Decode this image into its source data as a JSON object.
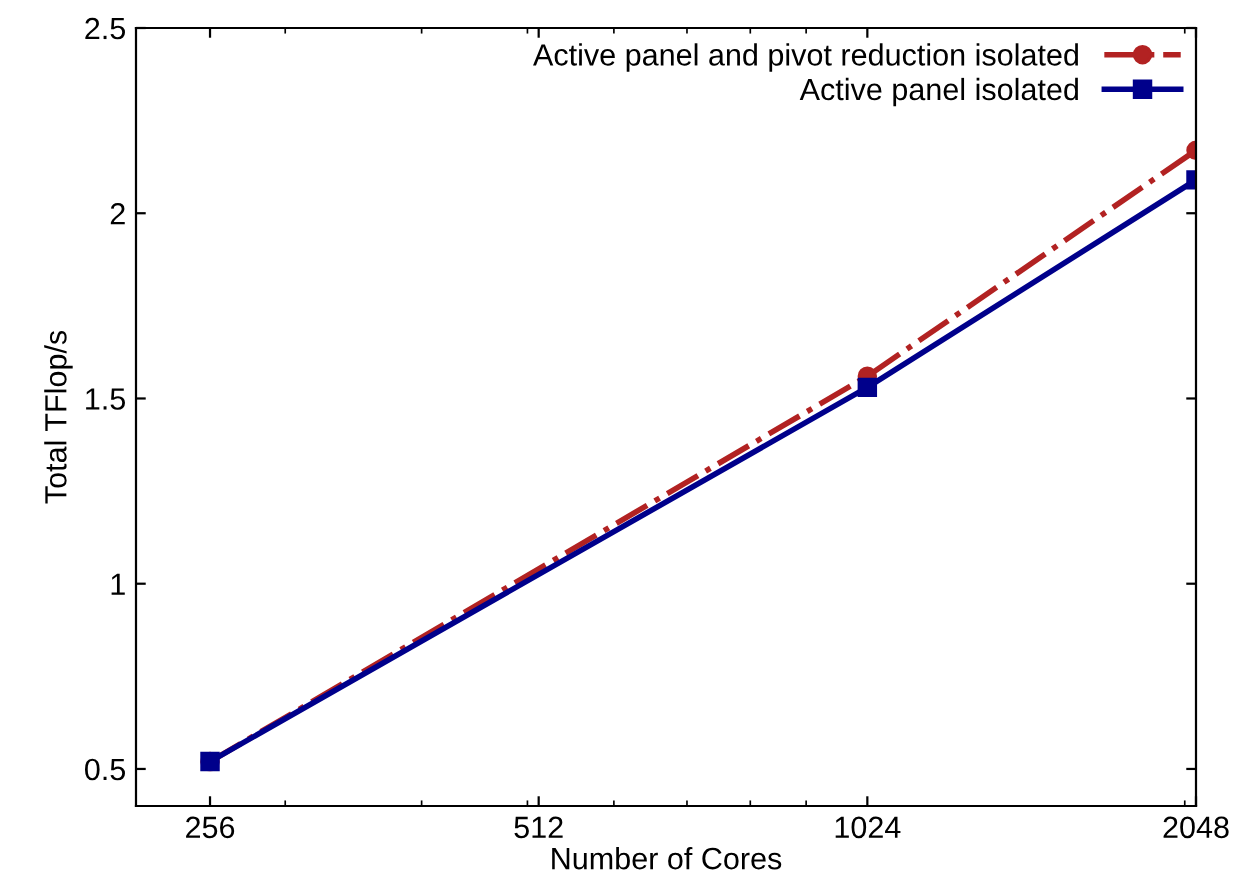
{
  "chart_data": {
    "type": "line",
    "xlabel": "Number of Cores",
    "ylabel": "Total TFlop/s",
    "log": "x",
    "x": [
      256,
      1024,
      2048
    ],
    "series": [
      {
        "name": "Active panel and pivot reduction isolated",
        "color": "#b22222",
        "values": [
          0.52,
          1.56,
          2.17
        ],
        "marker": "circle",
        "line_style": "dashdot"
      },
      {
        "name": "Active panel isolated",
        "color": "#00008b",
        "values": [
          0.52,
          1.53,
          2.09
        ],
        "marker": "square",
        "line_style": "solid"
      }
    ],
    "xlim": [
      219,
      2048
    ],
    "xticks": [
      256,
      512,
      1024,
      2048
    ],
    "ylim": [
      0.4,
      2.5
    ],
    "yticks": [
      0.5,
      1,
      1.5,
      2,
      2.5
    ],
    "grid": false,
    "legend": "top right"
  }
}
